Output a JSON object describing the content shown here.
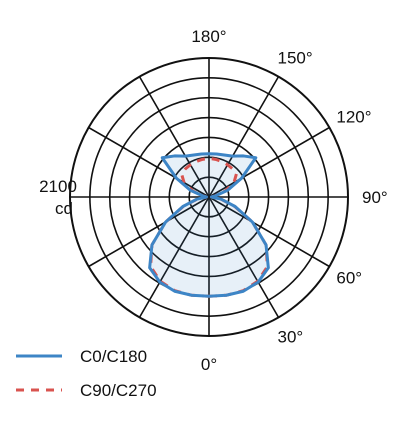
{
  "chart_data": {
    "type": "polar",
    "radial_label_value": "2100",
    "radial_label_unit": "cd",
    "r_max": 2800,
    "ring_step": 400,
    "angle_labels": [
      {
        "angle": 0,
        "text": "0°"
      },
      {
        "angle": 30,
        "text": "30°"
      },
      {
        "angle": 60,
        "text": "60°"
      },
      {
        "angle": 90,
        "text": "90°"
      },
      {
        "angle": 120,
        "text": "120°"
      },
      {
        "angle": 150,
        "text": "150°"
      },
      {
        "angle": 180,
        "text": "180°"
      }
    ],
    "grid": true,
    "legend_position": "bottom-left",
    "series": [
      {
        "name": "C0/C180",
        "color": "#3d85c6",
        "style": "solid",
        "angles": [
          0,
          10,
          20,
          30,
          40,
          50,
          60,
          70,
          80,
          90,
          100,
          110,
          120,
          130,
          140,
          150,
          160,
          170,
          180
        ],
        "values": [
          2000,
          2010,
          2020,
          1980,
          1860,
          1500,
          1010,
          560,
          250,
          50,
          130,
          400,
          760,
          1230,
          1080,
          950,
          900,
          880,
          870
        ]
      },
      {
        "name": "C90/C270",
        "color": "#d9534f",
        "style": "dashed",
        "angles": [
          0,
          10,
          20,
          30,
          40,
          50,
          60,
          70,
          80,
          90,
          100,
          110,
          120,
          130,
          140,
          150,
          160,
          170,
          180
        ],
        "values": [
          2000,
          2010,
          2010,
          1960,
          1830,
          1500,
          1010,
          550,
          240,
          50,
          120,
          340,
          580,
          720,
          740,
          750,
          760,
          770,
          780
        ]
      }
    ]
  }
}
